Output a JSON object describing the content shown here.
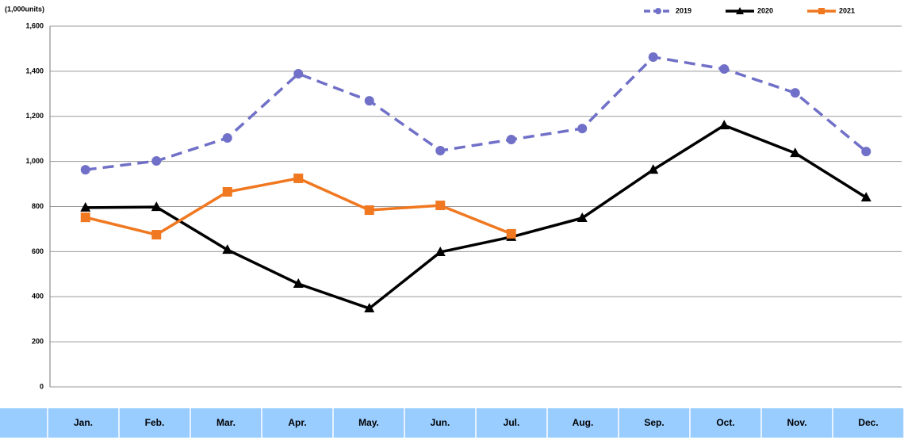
{
  "chart_data": {
    "type": "line",
    "y_axis_label": "(1,000units)",
    "categories": [
      "Jan.",
      "Feb.",
      "Mar.",
      "Apr.",
      "May.",
      "Jun.",
      "Jul.",
      "Aug.",
      "Sep.",
      "Oct.",
      "Nov.",
      "Dec."
    ],
    "series": [
      {
        "name": "2019",
        "color": "#7070c8",
        "marker": "circle",
        "dashed": true,
        "values": [
          963,
          1002,
          1104,
          1389,
          1269,
          1048,
          1097,
          1146,
          1463,
          1410,
          1304,
          1044
        ]
      },
      {
        "name": "2020",
        "color": "#000000",
        "marker": "triangle",
        "dashed": false,
        "values": [
          795,
          798,
          608,
          457,
          348,
          598,
          665,
          749,
          963,
          1160,
          1037,
          840
        ]
      },
      {
        "name": "2021",
        "color": "#f07820",
        "marker": "square",
        "dashed": false,
        "values": [
          752,
          675,
          865,
          925,
          784,
          805,
          679,
          null,
          null,
          null,
          null,
          null
        ]
      }
    ],
    "ylim": [
      0,
      1600
    ],
    "yticks": [
      0,
      200,
      400,
      600,
      800,
      {
        "value": 1000,
        "label": "1,000"
      },
      {
        "value": 1200,
        "label": "1,200"
      },
      {
        "value": 1400,
        "label": "1,400"
      },
      {
        "value": 1600,
        "label": "1,600"
      }
    ],
    "grid": true,
    "legend": "top-right"
  }
}
